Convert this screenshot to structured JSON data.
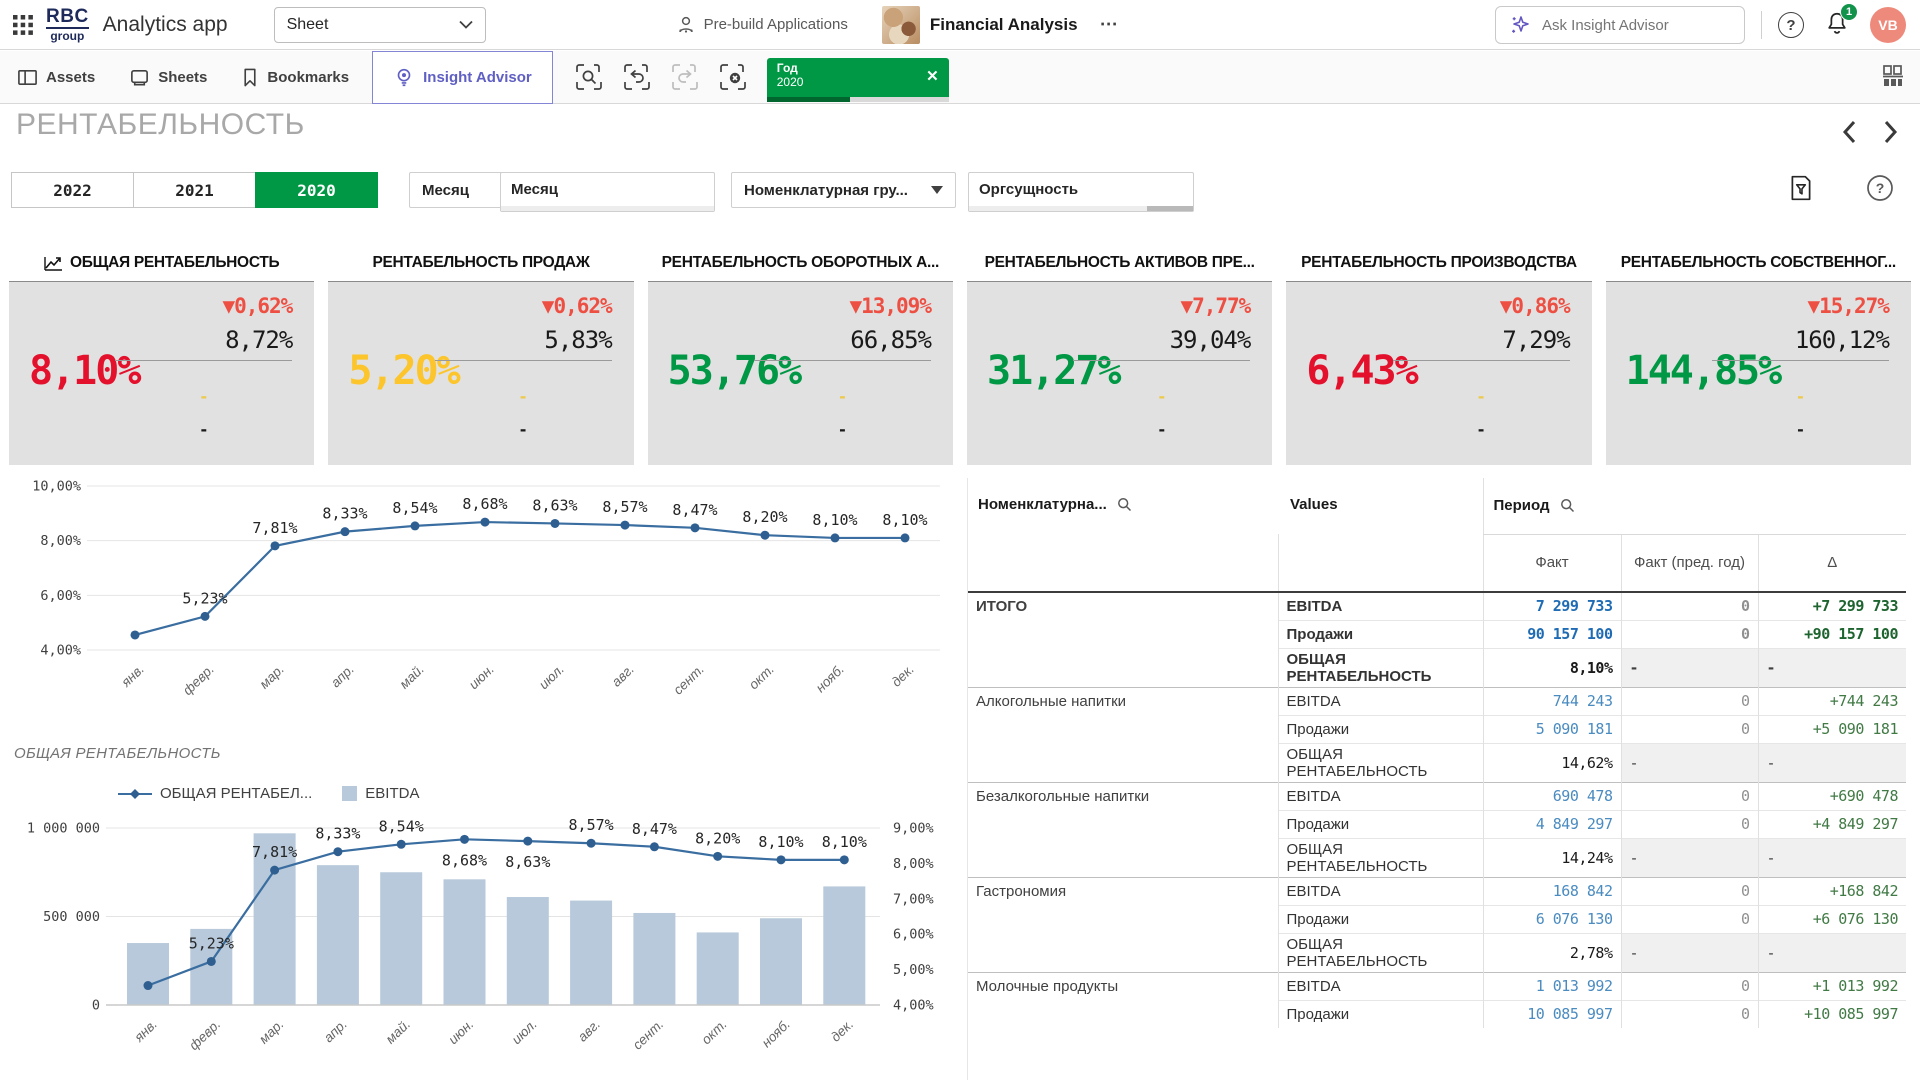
{
  "topbar": {
    "logo_line1": "RBC",
    "logo_line2": "group",
    "app_name": "Analytics app",
    "sheet_selector_label": "Sheet",
    "prebuild_label": "Pre-build Applications",
    "app_title": "Financial Analysis",
    "more_label": "⋯",
    "search_placeholder": "Ask Insight Advisor",
    "notification_count": "1",
    "avatar_initials": "VB",
    "help_glyph": "?"
  },
  "toolbar": {
    "assets_label": "Assets",
    "sheets_label": "Sheets",
    "bookmarks_label": "Bookmarks",
    "insight_advisor_label": "Insight Advisor",
    "filter_chip": {
      "field": "Год",
      "value": "2020",
      "progress_pct": 46,
      "close_glyph": "✕"
    }
  },
  "sheet": {
    "title": "РЕНТАБЕЛЬНОСТЬ"
  },
  "filters": {
    "year_buttons": [
      "2022",
      "2021",
      "2020"
    ],
    "selected_year": "2020",
    "month_dropdown_label": "Месяц",
    "month_listbox_label": "Месяц",
    "nomenclature_dropdown_label": "Номенклатурная гру...",
    "org_listbox_label": "Оргсущность"
  },
  "kpis": [
    {
      "title": "ОБЩАЯ РЕНТАБЕЛЬНОСТЬ",
      "value": "8,10%",
      "value_color": "#e4112d",
      "delta": "▼0,62%",
      "prev": "8,72%",
      "dash_top": "-",
      "dash_bottom": "-"
    },
    {
      "title": "РЕНТАБЕЛЬНОСТЬ ПРОДАЖ",
      "value": "5,20%",
      "value_color": "#fcc52c",
      "delta": "▼0,62%",
      "prev": "5,83%",
      "dash_top": "-",
      "dash_bottom": "-"
    },
    {
      "title": "РЕНТАБЕЛЬНОСТЬ ОБОРОТНЫХ А...",
      "value": "53,76%",
      "value_color": "#009845",
      "delta": "▼13,09%",
      "prev": "66,85%",
      "dash_top": "-",
      "dash_bottom": "-"
    },
    {
      "title": "РЕНТАБЕЛЬНОСТЬ АКТИВОВ ПРЕ...",
      "value": "31,27%",
      "value_color": "#009845",
      "delta": "▼7,77%",
      "prev": "39,04%",
      "dash_top": "-",
      "dash_bottom": "-"
    },
    {
      "title": "РЕНТАБЕЛЬНОСТЬ ПРОИЗВОДСТВА",
      "value": "6,43%",
      "value_color": "#e4112d",
      "delta": "▼0,86%",
      "prev": "7,29%",
      "dash_top": "-",
      "dash_bottom": "-"
    },
    {
      "title": "РЕНТАБЕЛЬНОСТЬ СОБСТВЕННОГ...",
      "value": "144,85%",
      "value_color": "#009845",
      "delta": "▼15,27%",
      "prev": "160,12%",
      "dash_top": "-",
      "dash_bottom": "-"
    }
  ],
  "chart_data": [
    {
      "type": "line",
      "title": "",
      "x": [
        "янв.",
        "февр.",
        "мар.",
        "апр.",
        "май.",
        "июн.",
        "июл.",
        "авг.",
        "сент.",
        "окт.",
        "нояб.",
        "дек."
      ],
      "series": [
        {
          "name": "ОБЩАЯ РЕНТАБЕЛЬНОСТЬ",
          "values": [
            4.55,
            5.23,
            7.81,
            8.33,
            8.54,
            8.68,
            8.63,
            8.57,
            8.47,
            8.2,
            8.1,
            8.1
          ]
        }
      ],
      "point_labels": [
        "",
        "5,23%",
        "7,81%",
        "8,33%",
        "8,54%",
        "8,68%",
        "8,63%",
        "8,57%",
        "8,47%",
        "8,20%",
        "8,10%",
        "8,10%"
      ],
      "ylim": [
        4,
        10
      ],
      "yticks": [
        {
          "v": 10,
          "label": "10,00%"
        },
        {
          "v": 8,
          "label": "8,00%"
        },
        {
          "v": 6,
          "label": "6,00%"
        },
        {
          "v": 4,
          "label": "4,00%"
        }
      ],
      "grid": true,
      "line_color": "#3a6da0",
      "point_color": "#2e5f90"
    },
    {
      "type": "combo",
      "title": "ОБЩАЯ РЕНТАБЕЛЬНОСТЬ",
      "legend": [
        {
          "name": "ОБЩАЯ РЕНТАБЕЛ...",
          "marker": "line"
        },
        {
          "name": "EBITDA",
          "marker": "bar"
        }
      ],
      "x": [
        "янв.",
        "февр.",
        "мар.",
        "апр.",
        "май.",
        "июн.",
        "июл.",
        "авг.",
        "сент.",
        "окт.",
        "нояб.",
        "дек."
      ],
      "bars": {
        "name": "EBITDA",
        "values": [
          350000,
          430000,
          970000,
          790000,
          750000,
          710000,
          610000,
          590000,
          520000,
          410000,
          490000,
          670000
        ]
      },
      "line": {
        "name": "ОБЩАЯ РЕНТАБЕЛЬНОСТЬ",
        "values": [
          4.55,
          5.23,
          7.81,
          8.33,
          8.54,
          8.68,
          8.63,
          8.57,
          8.47,
          8.2,
          8.1,
          8.1
        ]
      },
      "point_labels": [
        "",
        "5,23%",
        "7,81%",
        "8,33%",
        "8,54%",
        "8,68%",
        "8,63%",
        "8,57%",
        "8,47%",
        "8,20%",
        "8,10%",
        "8,10%"
      ],
      "labels_below": [
        false,
        false,
        false,
        false,
        false,
        true,
        true,
        false,
        false,
        false,
        false,
        false
      ],
      "left_ylim": [
        0,
        1000000
      ],
      "left_yticks": [
        {
          "v": 1000000,
          "label": "1 000 000"
        },
        {
          "v": 500000,
          "label": "500 000"
        },
        {
          "v": 0,
          "label": "0"
        }
      ],
      "right_ylim": [
        4,
        9
      ],
      "right_yticks": [
        {
          "v": 9,
          "label": "9,00%"
        },
        {
          "v": 8,
          "label": "8,00%"
        },
        {
          "v": 7,
          "label": "7,00%"
        },
        {
          "v": 6,
          "label": "6,00%"
        },
        {
          "v": 5,
          "label": "5,00%"
        },
        {
          "v": 4,
          "label": "4,00%"
        }
      ],
      "bar_color": "#b7c9da",
      "line_color": "#3a6da0",
      "point_color": "#2e5f90"
    }
  ],
  "pivot": {
    "col1_header": "Номенклатурна...",
    "col2_header": "Values",
    "period_header": "Период",
    "subheaders": [
      "Факт",
      "Факт (пред. год)",
      "Δ"
    ],
    "groups": [
      {
        "name": "ИТОГО",
        "bold": true,
        "rows": [
          {
            "measure": "EBITDA",
            "fact": "7 299 733",
            "prev": "0",
            "delta": "+7 299 733",
            "kind": "num"
          },
          {
            "measure": "Продажи",
            "fact": "90 157 100",
            "prev": "0",
            "delta": "+90 157 100",
            "kind": "num"
          },
          {
            "measure": "ОБЩАЯ РЕНТАБЕЛЬНОСТЬ",
            "fact": "8,10%",
            "prev": "-",
            "delta": "-",
            "kind": "pct"
          }
        ]
      },
      {
        "name": "Алкогольные напитки",
        "bold": false,
        "rows": [
          {
            "measure": "EBITDA",
            "fact": "744 243",
            "prev": "0",
            "delta": "+744 243",
            "kind": "num"
          },
          {
            "measure": "Продажи",
            "fact": "5 090 181",
            "prev": "0",
            "delta": "+5 090 181",
            "kind": "num"
          },
          {
            "measure": "ОБЩАЯ РЕНТАБЕЛЬНОСТЬ",
            "fact": "14,62%",
            "prev": "-",
            "delta": "-",
            "kind": "pct"
          }
        ]
      },
      {
        "name": "Безалкогольные напитки",
        "bold": false,
        "rows": [
          {
            "measure": "EBITDA",
            "fact": "690 478",
            "prev": "0",
            "delta": "+690 478",
            "kind": "num"
          },
          {
            "measure": "Продажи",
            "fact": "4 849 297",
            "prev": "0",
            "delta": "+4 849 297",
            "kind": "num"
          },
          {
            "measure": "ОБЩАЯ РЕНТАБЕЛЬНОСТЬ",
            "fact": "14,24%",
            "prev": "-",
            "delta": "-",
            "kind": "pct"
          }
        ]
      },
      {
        "name": "Гастрономия",
        "bold": false,
        "rows": [
          {
            "measure": "EBITDA",
            "fact": "168 842",
            "prev": "0",
            "delta": "+168 842",
            "kind": "num"
          },
          {
            "measure": "Продажи",
            "fact": "6 076 130",
            "prev": "0",
            "delta": "+6 076 130",
            "kind": "num"
          },
          {
            "measure": "ОБЩАЯ РЕНТАБЕЛЬНОСТЬ",
            "fact": "2,78%",
            "prev": "-",
            "delta": "-",
            "kind": "pct"
          }
        ]
      },
      {
        "name": "Молочные продукты",
        "bold": false,
        "rows": [
          {
            "measure": "EBITDA",
            "fact": "1 013 992",
            "prev": "0",
            "delta": "+1 013 992",
            "kind": "num"
          },
          {
            "measure": "Продажи",
            "fact": "10 085 997",
            "prev": "0",
            "delta": "+10 085 997",
            "kind": "num"
          }
        ]
      }
    ]
  },
  "colors": {
    "accent_green": "#009845",
    "delta_red": "#ee4f43",
    "bar_fill": "#b7c9da",
    "line_stroke": "#3a6da0"
  }
}
